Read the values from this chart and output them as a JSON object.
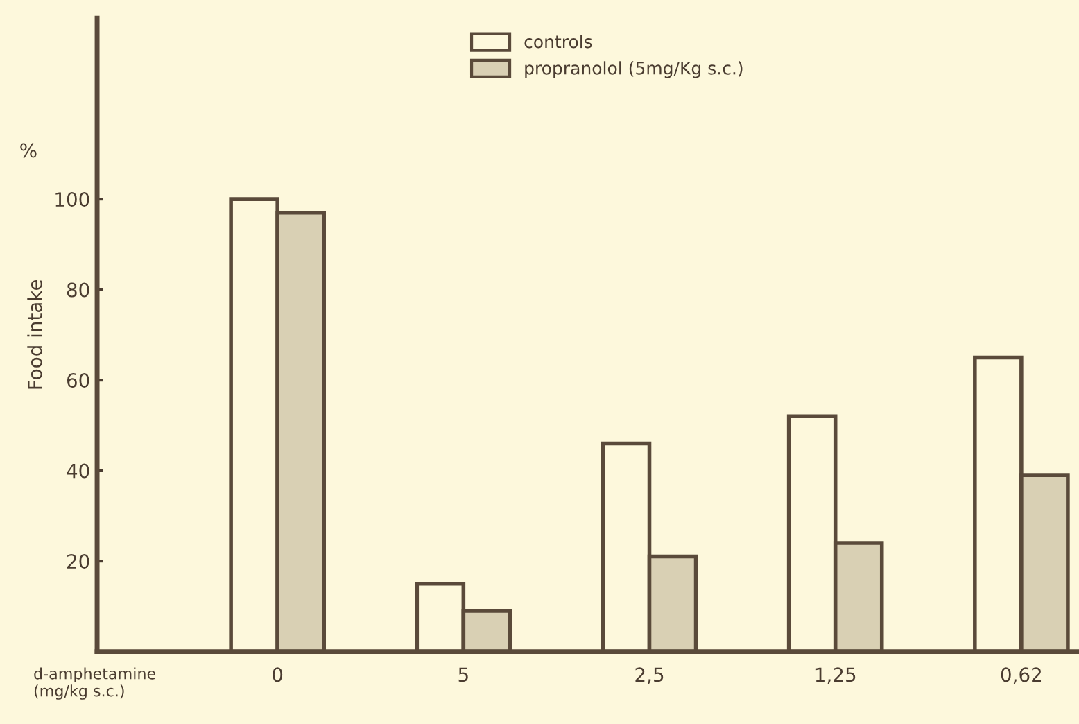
{
  "chart_data": {
    "type": "bar",
    "ylabel": "Food intake",
    "xlabel": "d-amphetamine\n(mg/kg s.c.)",
    "annotations": [
      "%"
    ],
    "categories": [
      "0",
      "5",
      "2,5",
      "1,25",
      "0,62"
    ],
    "series": [
      {
        "name": "controls",
        "color": "#fdf8dc",
        "values": [
          100,
          15,
          46,
          52,
          65
        ]
      },
      {
        "name": "propranolol (5mg/Kg s.c.)",
        "color": "#d9d0b4",
        "values": [
          97,
          9,
          21,
          24,
          39
        ]
      }
    ],
    "ylim": [
      0,
      140
    ],
    "yticks": [
      20,
      40,
      60,
      80,
      100
    ],
    "legend": "top",
    "grid": false
  }
}
